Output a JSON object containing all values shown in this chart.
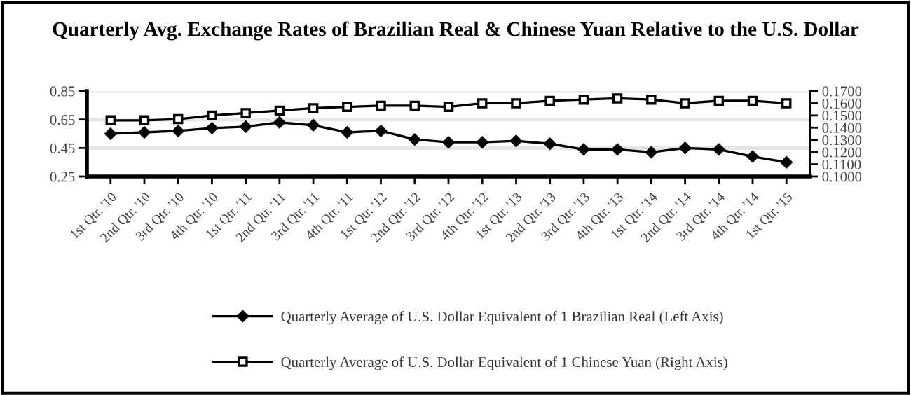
{
  "chart_data": {
    "type": "line",
    "title": "Quarterly Avg. Exchange Rates of Brazilian Real & Chinese Yuan Relative to the U.S. Dollar",
    "categories": [
      "1st Qtr. '10",
      "2nd Qtr. '10",
      "3rd Qtr. '10",
      "4th Qtr. '10",
      "1st Qtr. '11",
      "2nd Qtr. '11",
      "3rd Qtr. '11",
      "4th Qtr. '11",
      "1st Qtr. '12",
      "2nd Qtr. '12",
      "3rd Qtr. '12",
      "4th Qtr. '12",
      "1st Qtr. '13",
      "2nd Qtr. '13",
      "3rd Qtr. '13",
      "4th Qtr. '13",
      "1st Qtr. '14",
      "2nd Qtr. '14",
      "3rd Qtr. '14",
      "4th Qtr. '14",
      "1st Qtr. '15"
    ],
    "series": [
      {
        "name": "Quarterly Average of U.S. Dollar Equivalent of 1 Brazilian Real (Left Axis)",
        "color": "#000000",
        "marker": "diamond",
        "values": [
          0.55,
          0.56,
          0.57,
          0.59,
          0.6,
          0.63,
          0.61,
          0.56,
          0.57,
          0.51,
          0.49,
          0.49,
          0.5,
          0.48,
          0.44,
          0.44,
          0.42,
          0.45,
          0.44,
          0.39,
          0.35
        ]
      },
      {
        "name": "Quarterly Average of U.S. Dollar Equivalent of 1 Chinese Yuan (Right Axis)",
        "color": "#000000",
        "marker": "square",
        "axis": "y2",
        "values": [
          0.146,
          0.146,
          0.147,
          0.15,
          0.152,
          0.154,
          0.156,
          0.157,
          0.158,
          0.158,
          0.157,
          0.16,
          0.16,
          0.162,
          0.163,
          0.164,
          0.163,
          0.16,
          0.162,
          0.162,
          0.16
        ]
      }
    ],
    "ylim": [
      0.25,
      0.85
    ],
    "yticks": [
      {
        "value": 0.25,
        "label": "0.25"
      },
      {
        "value": 0.45,
        "label": "0.45"
      },
      {
        "value": 0.65,
        "label": "0.65"
      },
      {
        "value": 0.85,
        "label": "0.85"
      }
    ],
    "y2lim": [
      0.1,
      0.17
    ],
    "y2ticks": [
      {
        "value": 0.1,
        "label": "0.1000"
      },
      {
        "value": 0.11,
        "label": "0.1100"
      },
      {
        "value": 0.12,
        "label": "0.1200"
      },
      {
        "value": 0.13,
        "label": "0.1300"
      },
      {
        "value": 0.14,
        "label": "0.1400"
      },
      {
        "value": 0.15,
        "label": "0.1500"
      },
      {
        "value": 0.16,
        "label": "0.1600"
      },
      {
        "value": 0.17,
        "label": "0.1700"
      }
    ],
    "grid": "y",
    "legend": "bottom",
    "line_style": "solid"
  }
}
